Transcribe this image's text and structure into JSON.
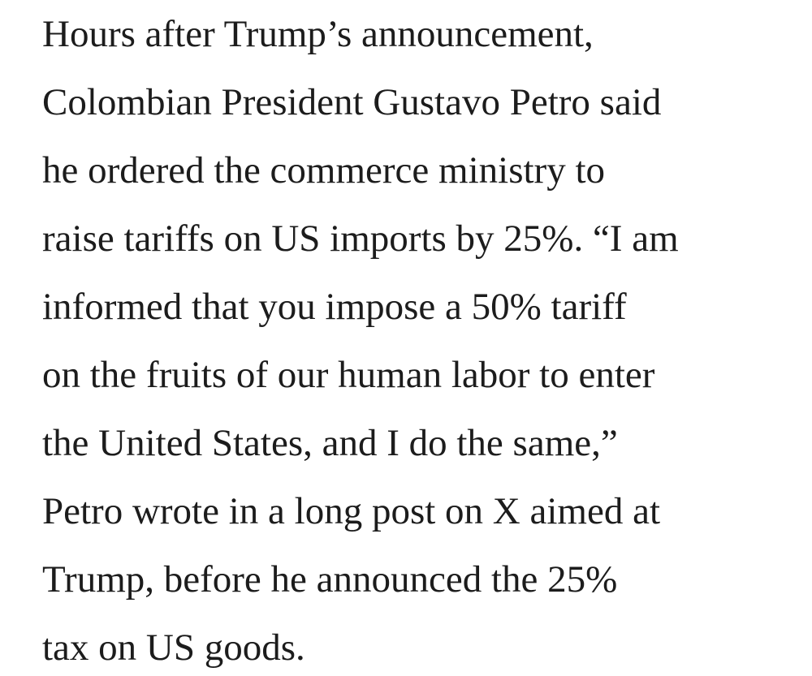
{
  "paragraph": {
    "lines": [
      "Hours after Trump’s announcement,",
      "Colombian President Gustavo Petro said",
      "he ordered the commerce ministry to",
      "raise tariffs on US imports by 25%. “I am",
      "informed that you impose a 50% tariff",
      "on the fruits of our human labor to enter",
      "the United States, and I do the same,”",
      "Petro wrote in a long post on X aimed at",
      "Trump, before he announced the 25%",
      "tax on US goods."
    ]
  }
}
